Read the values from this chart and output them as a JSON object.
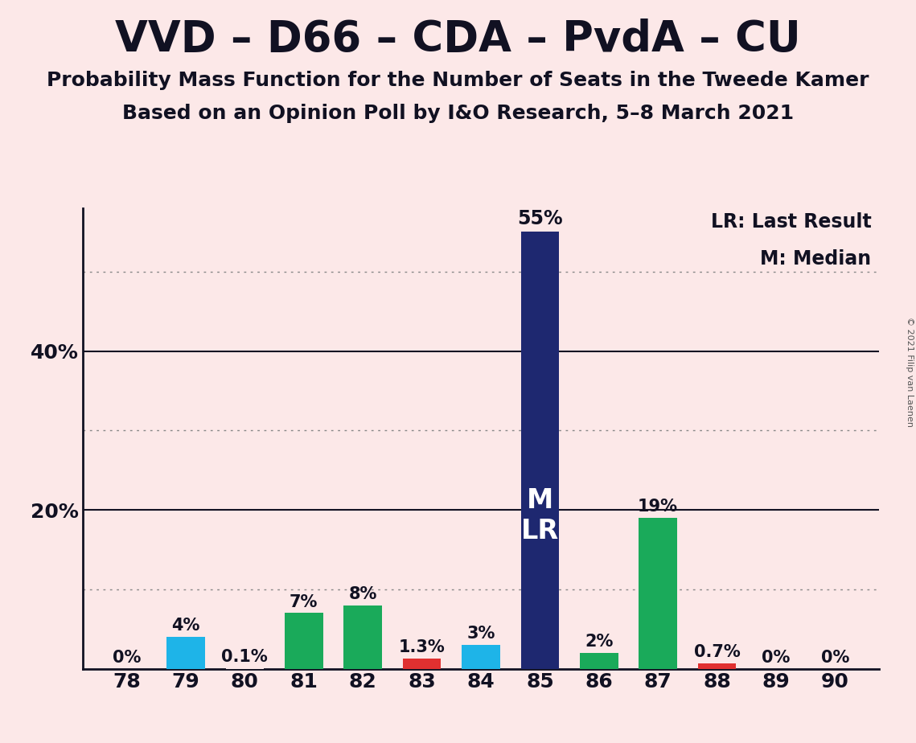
{
  "title": "VVD – D66 – CDA – PvdA – CU",
  "subtitle1": "Probability Mass Function for the Number of Seats in the Tweede Kamer",
  "subtitle2": "Based on an Opinion Poll by I&O Research, 5–8 March 2021",
  "copyright": "© 2021 Filip van Laenen",
  "categories": [
    78,
    79,
    80,
    81,
    82,
    83,
    84,
    85,
    86,
    87,
    88,
    89,
    90
  ],
  "values": [
    0,
    4,
    0.1,
    7,
    8,
    1.3,
    3,
    55,
    2,
    19,
    0.7,
    0,
    0
  ],
  "labels": [
    "0%",
    "4%",
    "0.1%",
    "7%",
    "8%",
    "1.3%",
    "3%",
    "55%",
    "2%",
    "19%",
    "0.7%",
    "0%",
    "0%"
  ],
  "colors": [
    "#fce8e8",
    "#1eb4e8",
    "#fce8e8",
    "#1aaa5a",
    "#1aaa5a",
    "#e03030",
    "#1eb4e8",
    "#1e2870",
    "#1aaa5a",
    "#1aaa5a",
    "#e03030",
    "#fce8e8",
    "#fce8e8"
  ],
  "background_color": "#fce8e8",
  "ylim": [
    0,
    58
  ],
  "solid_yticks": [
    20,
    40
  ],
  "dotted_yticks": [
    10,
    30,
    50
  ],
  "ytick_labels_pos": [
    20,
    40
  ],
  "ytick_labels_vals": [
    "20%",
    "40%"
  ],
  "legend_lr": "LR: Last Result",
  "legend_m": "M: Median",
  "bar_width": 0.65,
  "title_fontsize": 38,
  "subtitle_fontsize": 18,
  "label_fontsize": 15,
  "tick_fontsize": 18,
  "legend_fontsize": 17,
  "ml_label_fontsize": 24,
  "axis_label_color": "#111122",
  "label_color_light": "#111122",
  "spine_color": "#111122"
}
